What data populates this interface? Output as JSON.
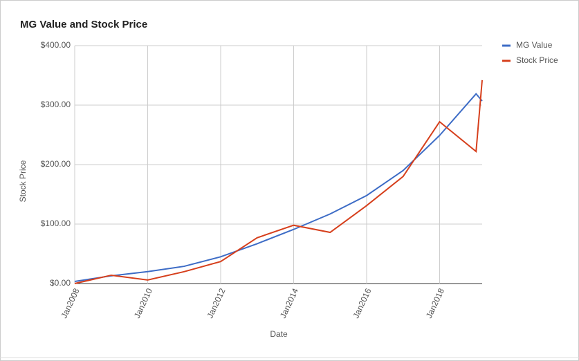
{
  "chart_data": {
    "type": "line",
    "title": "MG Value and Stock Price",
    "x_label": "Date",
    "y_label": "Stock Price",
    "x": [
      "2008-01",
      "2009-01",
      "2010-01",
      "2011-01",
      "2012-01",
      "2013-01",
      "2014-01",
      "2015-01",
      "2016-01",
      "2017-01",
      "2018-01",
      "2019-01",
      "2019-03"
    ],
    "series": [
      {
        "name": "MG Value",
        "color": "#3d6cc6",
        "values": [
          3.5,
          13,
          20,
          29,
          45,
          67,
          91,
          117,
          148,
          190,
          249,
          319,
          307
        ]
      },
      {
        "name": "Stock Price",
        "color": "#d63f1c",
        "values": [
          0,
          14,
          6,
          20,
          37,
          77,
          98,
          86,
          131,
          180,
          272,
          222,
          342
        ]
      }
    ],
    "xlim": [
      "2008-01",
      "2019-03"
    ],
    "xticks": [
      {
        "value": "2008-01",
        "label": "Jan2008"
      },
      {
        "value": "2010-01",
        "label": "Jan2010"
      },
      {
        "value": "2012-01",
        "label": "Jan2012"
      },
      {
        "value": "2014-01",
        "label": "Jan2014"
      },
      {
        "value": "2016-01",
        "label": "Jan2016"
      },
      {
        "value": "2018-01",
        "label": "Jan2018"
      }
    ],
    "ylim": [
      0,
      400
    ],
    "yticks": [
      {
        "value": 0,
        "label": "$0.00"
      },
      {
        "value": 100,
        "label": "$100.00"
      },
      {
        "value": 200,
        "label": "$200.00"
      },
      {
        "value": 300,
        "label": "$300.00"
      },
      {
        "value": 400,
        "label": "$400.00"
      }
    ],
    "grid": true,
    "legend": "right"
  }
}
